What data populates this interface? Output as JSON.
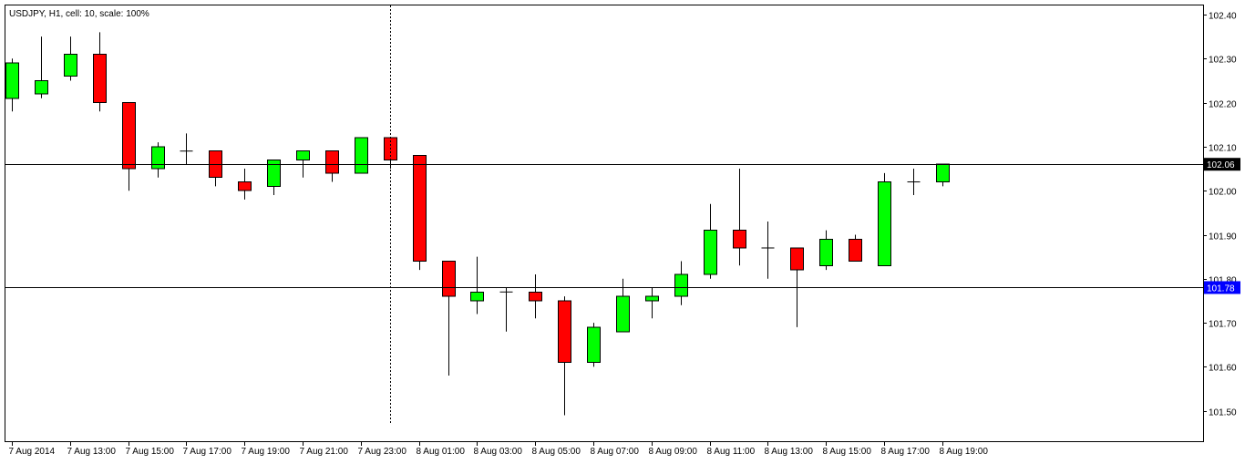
{
  "chart_data": {
    "type": "candlestick",
    "title": "USDJPY, H1, cell: 10, scale: 100%",
    "colors": {
      "up": "#00ff00",
      "down": "#ff0000",
      "line": "#000000",
      "current_price_bg": "#000000",
      "level_bg": "#0000ff"
    },
    "ylim": [
      101.45,
      102.42
    ],
    "y_ticks": [
      102.4,
      102.3,
      102.2,
      102.1,
      102.0,
      101.9,
      101.8,
      101.7,
      101.6,
      101.5
    ],
    "y_tick_labels": [
      "102.40",
      "102.30",
      "102.20",
      "102.10",
      "102.00",
      "101.90",
      "101.80",
      "101.70",
      "101.60",
      "101.50"
    ],
    "x_tick_labels": [
      "7 Aug 2014",
      "7 Aug 13:00",
      "7 Aug 15:00",
      "7 Aug 17:00",
      "7 Aug 19:00",
      "7 Aug 21:00",
      "7 Aug 23:00",
      "8 Aug 01:00",
      "8 Aug 03:00",
      "8 Aug 05:00",
      "8 Aug 07:00",
      "8 Aug 09:00",
      "8 Aug 11:00",
      "8 Aug 13:00",
      "8 Aug 15:00",
      "8 Aug 17:00",
      "8 Aug 19:00"
    ],
    "candles": [
      {
        "open": 102.21,
        "high": 102.3,
        "low": 102.18,
        "close": 102.29
      },
      {
        "open": 102.22,
        "high": 102.35,
        "low": 102.21,
        "close": 102.25
      },
      {
        "open": 102.26,
        "high": 102.35,
        "low": 102.25,
        "close": 102.31
      },
      {
        "open": 102.31,
        "high": 102.36,
        "low": 102.18,
        "close": 102.2
      },
      {
        "open": 102.2,
        "high": 102.2,
        "low": 102.0,
        "close": 102.05
      },
      {
        "open": 102.05,
        "high": 102.11,
        "low": 102.03,
        "close": 102.1
      },
      {
        "open": 102.09,
        "high": 102.13,
        "low": 102.06,
        "close": 102.09
      },
      {
        "open": 102.09,
        "high": 102.09,
        "low": 102.01,
        "close": 102.03
      },
      {
        "open": 102.02,
        "high": 102.05,
        "low": 101.98,
        "close": 102.0
      },
      {
        "open": 102.01,
        "high": 102.07,
        "low": 101.99,
        "close": 102.07
      },
      {
        "open": 102.07,
        "high": 102.09,
        "low": 102.03,
        "close": 102.09
      },
      {
        "open": 102.09,
        "high": 102.09,
        "low": 102.02,
        "close": 102.04
      },
      {
        "open": 102.04,
        "high": 102.12,
        "low": 102.04,
        "close": 102.12
      },
      {
        "open": 102.12,
        "high": 102.12,
        "low": 102.05,
        "close": 102.07
      },
      {
        "open": 102.08,
        "high": 102.08,
        "low": 101.82,
        "close": 101.84
      },
      {
        "open": 101.84,
        "high": 101.84,
        "low": 101.58,
        "close": 101.76
      },
      {
        "open": 101.75,
        "high": 101.85,
        "low": 101.72,
        "close": 101.77
      },
      {
        "open": 101.77,
        "high": 101.78,
        "low": 101.68,
        "close": 101.77
      },
      {
        "open": 101.77,
        "high": 101.81,
        "low": 101.71,
        "close": 101.75
      },
      {
        "open": 101.75,
        "high": 101.76,
        "low": 101.49,
        "close": 101.61
      },
      {
        "open": 101.61,
        "high": 101.7,
        "low": 101.6,
        "close": 101.69
      },
      {
        "open": 101.68,
        "high": 101.8,
        "low": 101.68,
        "close": 101.76
      },
      {
        "open": 101.75,
        "high": 101.78,
        "low": 101.71,
        "close": 101.76
      },
      {
        "open": 101.76,
        "high": 101.84,
        "low": 101.74,
        "close": 101.81
      },
      {
        "open": 101.81,
        "high": 101.97,
        "low": 101.8,
        "close": 101.91
      },
      {
        "open": 101.91,
        "high": 102.05,
        "low": 101.83,
        "close": 101.87
      },
      {
        "open": 101.87,
        "high": 101.93,
        "low": 101.8,
        "close": 101.87
      },
      {
        "open": 101.87,
        "high": 101.87,
        "low": 101.69,
        "close": 101.82
      },
      {
        "open": 101.83,
        "high": 101.91,
        "low": 101.82,
        "close": 101.89
      },
      {
        "open": 101.89,
        "high": 101.9,
        "low": 101.84,
        "close": 101.84
      },
      {
        "open": 101.83,
        "high": 102.04,
        "low": 101.83,
        "close": 102.02
      },
      {
        "open": 102.02,
        "high": 102.05,
        "low": 101.99,
        "close": 102.02
      },
      {
        "open": 102.02,
        "high": 102.06,
        "low": 102.01,
        "close": 102.06
      }
    ],
    "current_price": {
      "value": 102.06,
      "label": "102.06"
    },
    "level_line": {
      "value": 101.78,
      "label": "101.78"
    },
    "crosshair_candle": 13
  }
}
